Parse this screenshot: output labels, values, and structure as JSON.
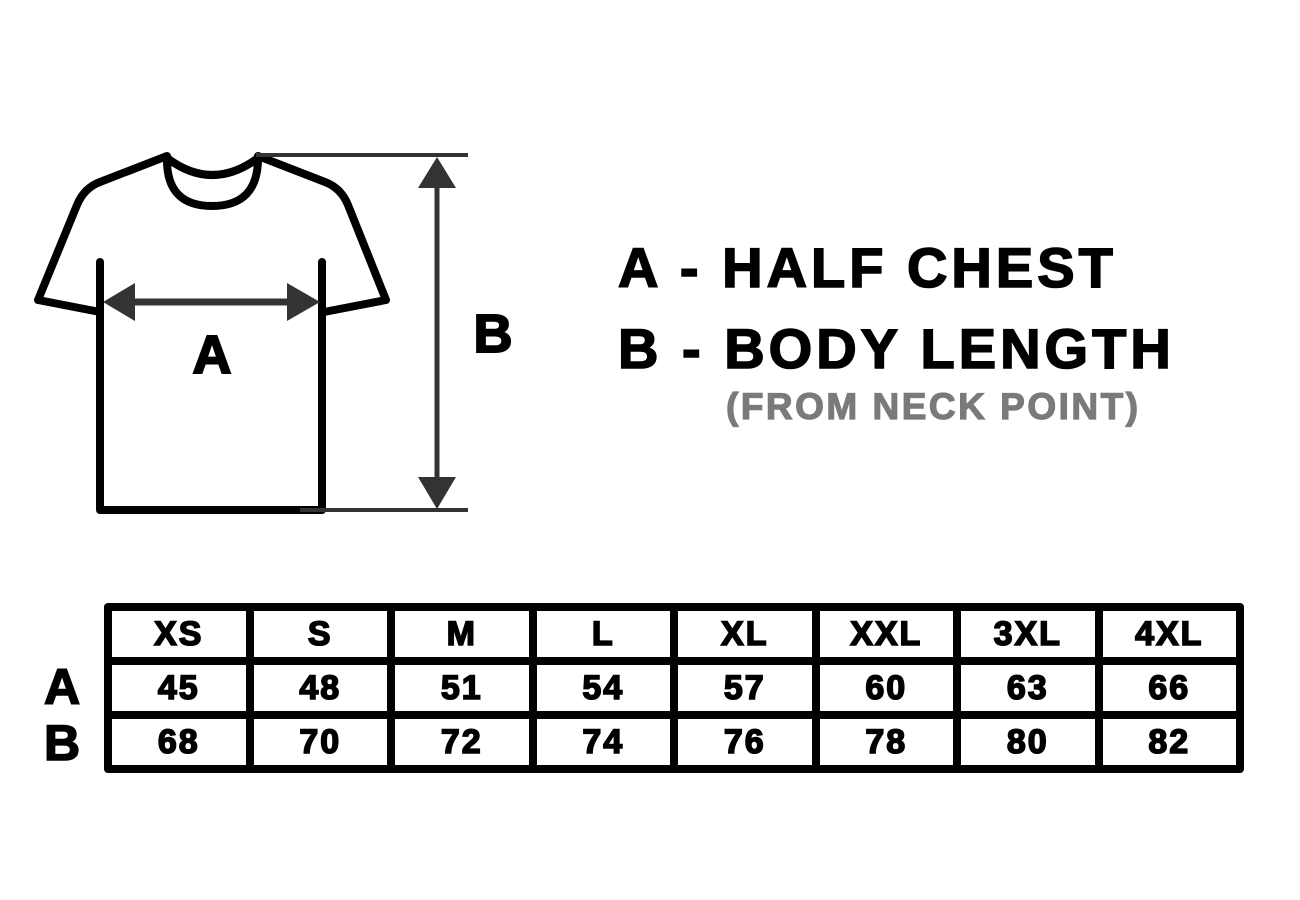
{
  "diagram": {
    "label_a": "A",
    "label_b": "B",
    "colors": {
      "outline": "#000000",
      "arrows": "#333333",
      "note": "#7a7a7a"
    }
  },
  "legend": {
    "line_a": "A - HALF CHEST",
    "line_b": "B - BODY LENGTH",
    "note": "(FROM NECK POINT)"
  },
  "table": {
    "row_labels": [
      "A",
      "B"
    ],
    "sizes": [
      "XS",
      "S",
      "M",
      "L",
      "XL",
      "XXL",
      "3XL",
      "4XL"
    ],
    "half_chest": [
      "45",
      "48",
      "51",
      "54",
      "57",
      "60",
      "63",
      "66"
    ],
    "body_length": [
      "68",
      "70",
      "72",
      "74",
      "76",
      "78",
      "80",
      "82"
    ]
  }
}
